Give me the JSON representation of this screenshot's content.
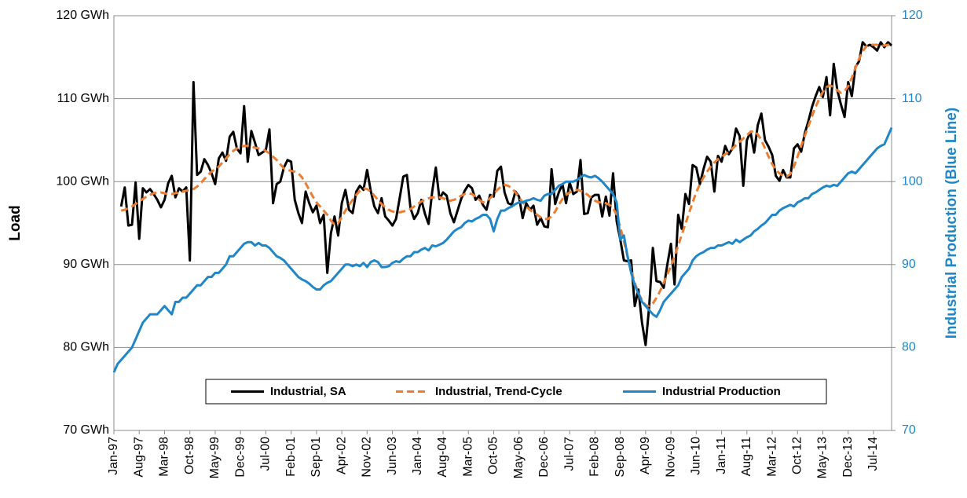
{
  "chart_data": {
    "type": "line",
    "categories": [
      "Jan-97",
      null,
      null,
      null,
      null,
      null,
      null,
      "Aug-97",
      null,
      null,
      null,
      null,
      null,
      null,
      "Mar-98",
      null,
      null,
      null,
      null,
      null,
      null,
      "Oct-98",
      null,
      null,
      null,
      null,
      null,
      null,
      "May-99",
      null,
      null,
      null,
      null,
      null,
      null,
      "Dec-99",
      null,
      null,
      null,
      null,
      null,
      null,
      "Jul-00",
      null,
      null,
      null,
      null,
      null,
      null,
      "Feb-01",
      null,
      null,
      null,
      null,
      null,
      null,
      "Sep-01",
      null,
      null,
      null,
      null,
      null,
      null,
      "Apr-02",
      null,
      null,
      null,
      null,
      null,
      null,
      "Nov-02",
      null,
      null,
      null,
      null,
      null,
      null,
      "Jun-03",
      null,
      null,
      null,
      null,
      null,
      null,
      "Jan-04",
      null,
      null,
      null,
      null,
      null,
      null,
      "Aug-04",
      null,
      null,
      null,
      null,
      null,
      null,
      "Mar-05",
      null,
      null,
      null,
      null,
      null,
      null,
      "Oct-05",
      null,
      null,
      null,
      null,
      null,
      null,
      "May-06",
      null,
      null,
      null,
      null,
      null,
      null,
      "Dec-06",
      null,
      null,
      null,
      null,
      null,
      null,
      "Jul-07",
      null,
      null,
      null,
      null,
      null,
      null,
      "Feb-08",
      null,
      null,
      null,
      null,
      null,
      null,
      "Sep-08",
      null,
      null,
      null,
      null,
      null,
      null,
      "Apr-09",
      null,
      null,
      null,
      null,
      null,
      null,
      "Nov-09",
      null,
      null,
      null,
      null,
      null,
      null,
      "Jun-10",
      null,
      null,
      null,
      null,
      null,
      null,
      "Jan-11",
      null,
      null,
      null,
      null,
      null,
      null,
      "Aug-11",
      null,
      null,
      null,
      null,
      null,
      null,
      "Mar-12",
      null,
      null,
      null,
      null,
      null,
      null,
      "Oct-12",
      null,
      null,
      null,
      null,
      null,
      null,
      "May-13",
      null,
      null,
      null,
      null,
      null,
      null,
      "Dec-13",
      null,
      null,
      null,
      null,
      null,
      null,
      "Jul-14",
      null,
      null,
      null,
      null,
      null
    ],
    "series": [
      {
        "name": "Industrial, SA",
        "color": "#000000",
        "dash": false,
        "axis": "y",
        "values": [
          null,
          null,
          97,
          99.3,
          94.7,
          94.8,
          99.9,
          93.1,
          99.2,
          98.7,
          99.1,
          98.5,
          97.8,
          96.9,
          97.8,
          99.8,
          100.7,
          98.1,
          99.2,
          98.8,
          99.3,
          90.5,
          112,
          100.8,
          101.2,
          102.7,
          102,
          101,
          99.7,
          102.8,
          103.5,
          102.5,
          105.4,
          106,
          104,
          103.4,
          109.1,
          102.4,
          106.1,
          104.7,
          103.2,
          103.5,
          103.8,
          106.3,
          97.4,
          99.7,
          100,
          101.7,
          102.6,
          102.4,
          97.8,
          96.2,
          95,
          98.8,
          97.4,
          96.3,
          97.1,
          95,
          96,
          89,
          93.8,
          95.8,
          93.5,
          97.4,
          99,
          96.6,
          96.2,
          98.8,
          99.5,
          99,
          101.4,
          98.9,
          97,
          96.2,
          98,
          95.8,
          95.3,
          94.7,
          95.5,
          98,
          100.6,
          100.8,
          96.8,
          95.5,
          96.2,
          97.8,
          96.1,
          94.9,
          98.8,
          101.7,
          97.9,
          98.7,
          98.3,
          96.2,
          95.1,
          96.5,
          97.9,
          98.9,
          99.6,
          99.2,
          97.8,
          98.3,
          97.2,
          96.6,
          98.4,
          98.2,
          101.3,
          101.8,
          98.7,
          97.4,
          97.2,
          98.8,
          98.2,
          95.6,
          97.4,
          96.6,
          97.1,
          94.8,
          95.6,
          94.6,
          94.5,
          101.5,
          97.3,
          98.7,
          99.7,
          97.4,
          99.9,
          98.5,
          98.8,
          102.6,
          96.1,
          96.2,
          98.1,
          98.4,
          98.4,
          95.8,
          98.2,
          95.9,
          101,
          95.2,
          93,
          90.5,
          90.4,
          90.5,
          85,
          87,
          83,
          80.3,
          85,
          92,
          88,
          87.9,
          87.2,
          90,
          92.5,
          87.6,
          96,
          94.3,
          98.5,
          97.3,
          102,
          101.7,
          99.7,
          101.5,
          103,
          102.4,
          98.8,
          103.1,
          102.4,
          104.3,
          103.3,
          104,
          106.4,
          105.5,
          99.5,
          105,
          106,
          103.5,
          106.8,
          108.2,
          105,
          104.2,
          103.2,
          100.7,
          100.1,
          101.4,
          100.5,
          100.5,
          104,
          104.5,
          103.6,
          105.8,
          107.3,
          109,
          110.3,
          111.4,
          110.2,
          112.6,
          108,
          114.2,
          111,
          109.3,
          107.8,
          112,
          110.3,
          113.8,
          114.5,
          116.8,
          116.3,
          116.5,
          116.2,
          115.8,
          116.8,
          116.2,
          116.8,
          116.4
        ]
      },
      {
        "name": "Industrial, Trend-Cycle",
        "color": "#ed7d31",
        "dash": true,
        "axis": "y",
        "values": [
          null,
          null,
          96.5,
          96.6,
          96.8,
          97,
          97.3,
          97.6,
          97.9,
          98.2,
          98.4,
          98.6,
          98.7,
          98.7,
          98.6,
          98.5,
          98.5,
          98.6,
          98.7,
          98.8,
          98.9,
          99,
          99.1,
          99.4,
          99.8,
          100.3,
          100.8,
          101.2,
          101.5,
          101.8,
          102.3,
          102.8,
          103.3,
          103.7,
          104,
          104.2,
          104.3,
          104.3,
          104.2,
          104.1,
          104,
          103.9,
          103.7,
          103.4,
          103,
          102.6,
          102.1,
          101.6,
          101.4,
          101.3,
          101.2,
          101,
          100.5,
          99.8,
          99,
          98.2,
          97.5,
          97,
          96.5,
          96,
          95.3,
          94.8,
          95,
          95.7,
          96.5,
          97.2,
          97.8,
          98.4,
          98.9,
          99.2,
          99.1,
          98.8,
          98.3,
          97.8,
          97.3,
          96.9,
          96.6,
          96.4,
          96.3,
          96.3,
          96.4,
          96.5,
          96.7,
          97,
          97.3,
          97.6,
          97.8,
          98,
          98.1,
          98.1,
          98.1,
          98,
          97.8,
          97.7,
          97.8,
          98,
          98.3,
          98.5,
          98.6,
          98.5,
          98.2,
          97.8,
          97.5,
          97.6,
          98,
          98.5,
          99,
          99.4,
          99.6,
          99.5,
          99.2,
          98.7,
          98.1,
          97.5,
          97,
          96.6,
          96.3,
          96,
          95.7,
          95.5,
          95.5,
          95.8,
          96.4,
          97.2,
          97.9,
          98.4,
          98.7,
          98.9,
          99,
          98.9,
          98.7,
          98.4,
          98,
          97.7,
          97.5,
          97.5,
          97.4,
          97.2,
          96.8,
          96,
          94.5,
          92.8,
          91,
          89.3,
          87.8,
          86.6,
          85.7,
          85.1,
          85,
          85.3,
          86,
          86.8,
          87.8,
          88.8,
          89.8,
          91,
          92.3,
          93.6,
          94.9,
          96.2,
          97.5,
          98.7,
          99.7,
          100.5,
          101.2,
          101.8,
          102.3,
          102.7,
          103,
          103.3,
          103.6,
          104,
          104.4,
          104.8,
          105.2,
          105.6,
          106,
          106.1,
          105.7,
          105,
          104,
          103,
          102.1,
          101.4,
          101,
          100.7,
          100.6,
          100.9,
          101.8,
          103,
          104.3,
          105.5,
          106.7,
          107.9,
          109,
          110,
          110.8,
          111.4,
          111.6,
          111.4,
          111,
          110.7,
          110.9,
          111.5,
          112.5,
          113.7,
          114.8,
          115.7,
          116.3,
          116.5,
          116.5,
          116.5,
          116.4,
          116.4,
          116.5,
          116.4
        ]
      },
      {
        "name": "Industrial Production",
        "color": "#1f87c8",
        "dash": false,
        "axis": "y2",
        "values": [
          77,
          78,
          78.5,
          79,
          79.5,
          80,
          81,
          82,
          83,
          83.5,
          84,
          84,
          84,
          84.5,
          85,
          84.5,
          84,
          85.5,
          85.5,
          86,
          86,
          86.5,
          87,
          87.5,
          87.5,
          88,
          88.5,
          88.5,
          89,
          89,
          89.5,
          90,
          91,
          91,
          91.5,
          92,
          92.5,
          92.7,
          92.7,
          92.3,
          92.6,
          92.3,
          92.3,
          92,
          91.5,
          91,
          90.8,
          90.5,
          90,
          89.5,
          89,
          88.5,
          88.2,
          88,
          87.7,
          87.3,
          87,
          87,
          87.5,
          87.8,
          88,
          88.5,
          89,
          89.5,
          90,
          90,
          89.8,
          90,
          89.8,
          90.2,
          89.7,
          90.3,
          90.5,
          90.3,
          89.7,
          89.7,
          89.8,
          90.2,
          90.4,
          90.3,
          90.7,
          91,
          91,
          91.5,
          91.5,
          91.8,
          92,
          91.7,
          92.3,
          92.2,
          92.4,
          92.6,
          93,
          93.5,
          94,
          94.3,
          94.5,
          95,
          95.3,
          95.2,
          95.5,
          95.7,
          96,
          96,
          95.5,
          94,
          95.5,
          96.5,
          96.5,
          96.8,
          97,
          97.3,
          97.5,
          97.5,
          97.7,
          97.8,
          98,
          97.8,
          97.7,
          98.3,
          98.5,
          98.5,
          99,
          99.5,
          99.7,
          100,
          100,
          100,
          100.2,
          100.5,
          100.8,
          100.6,
          100.5,
          100.7,
          100.4,
          100,
          99.5,
          99,
          98.5,
          97.5,
          93,
          93.5,
          91,
          89,
          87.5,
          86.5,
          85.5,
          85,
          84.5,
          84,
          83.7,
          84.5,
          85.5,
          86,
          86.5,
          87,
          87.5,
          88.5,
          89,
          89.5,
          90.5,
          91,
          91.3,
          91.5,
          91.8,
          92,
          92,
          92.3,
          92.3,
          92.5,
          92.7,
          92.5,
          93,
          92.7,
          93,
          93.3,
          93.5,
          94,
          94.3,
          94.7,
          95,
          95.5,
          96,
          96,
          96.5,
          96.8,
          97,
          97.2,
          97,
          97.5,
          97.7,
          98,
          98,
          98.5,
          98.7,
          99,
          99.3,
          99.5,
          99.4,
          99.6,
          99.5,
          100,
          100.5,
          101,
          101.2,
          101,
          101.5,
          102,
          102.5,
          103,
          103.5,
          104,
          104.3,
          104.5,
          105.5,
          106.5
        ]
      }
    ],
    "y_label": "Load",
    "y2_label": "Industrial Production (Blue Line)",
    "ylim": [
      70,
      120
    ],
    "yticks": [
      {
        "value": 70,
        "label": "70 GWh"
      },
      {
        "value": 80,
        "label": "80 GWh"
      },
      {
        "value": 90,
        "label": "90 GWh"
      },
      {
        "value": 100,
        "label": "100 GWh"
      },
      {
        "value": 110,
        "label": "110 GWh"
      },
      {
        "value": 120,
        "label": "120 GWh"
      }
    ],
    "y2lim": [
      70,
      120
    ],
    "y2ticks": [
      70,
      80,
      90,
      100,
      110,
      120
    ],
    "y2_color": "#1f87c8",
    "grid": true,
    "legend": "bottom"
  }
}
